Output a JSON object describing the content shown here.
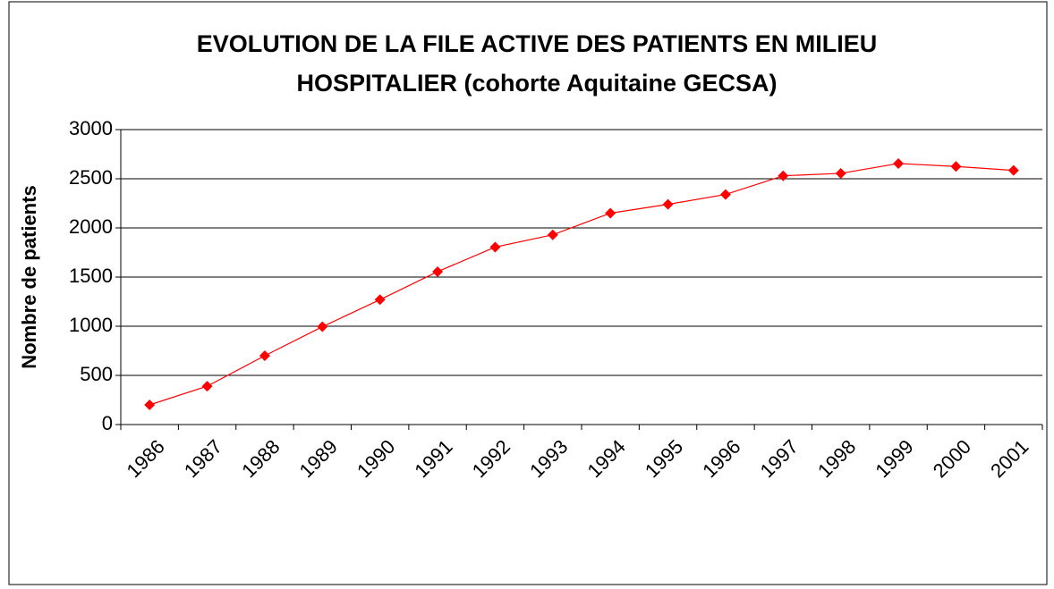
{
  "chart_data": {
    "type": "line",
    "title": [
      "EVOLUTION DE LA FILE ACTIVE DES PATIENTS EN MILIEU",
      "HOSPITALIER (cohorte Aquitaine GECSA)"
    ],
    "y_label": "Nombre de patients",
    "categories": [
      "1986",
      "1987",
      "1988",
      "1989",
      "1990",
      "1991",
      "1992",
      "1993",
      "1994",
      "1995",
      "1996",
      "1997",
      "1998",
      "1999",
      "2000",
      "2001"
    ],
    "series": [
      {
        "color": "#ff0000",
        "values": [
          200,
          390,
          700,
          995,
          1270,
          1555,
          1805,
          1930,
          2150,
          2240,
          2340,
          2530,
          2555,
          2655,
          2625,
          2585
        ]
      }
    ],
    "ylim": [
      0,
      3000
    ],
    "yticks": [
      0,
      500,
      1000,
      1500,
      2000,
      2500,
      3000
    ],
    "grid": true
  }
}
